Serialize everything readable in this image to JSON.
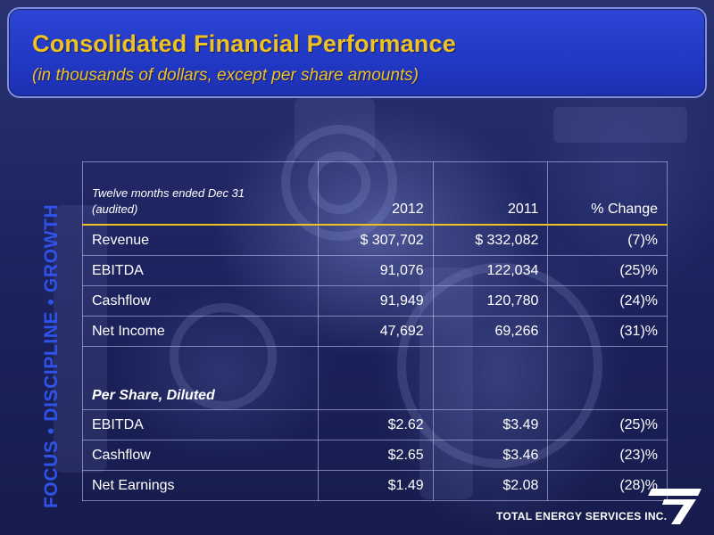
{
  "header": {
    "title": "Consolidated Financial Performance",
    "subtitle": "(in thousands of dollars, except per share amounts)"
  },
  "tagline": "FOCUS • DISCIPLINE • GROWTH",
  "table": {
    "description_line1": "Twelve months ended Dec 31",
    "description_line2": "(audited)",
    "columns": [
      "2012",
      "2011",
      "% Change"
    ],
    "rows": [
      {
        "label": "Revenue",
        "v2012": "$ 307,702",
        "v2011": "$ 332,082",
        "change": "(7)%"
      },
      {
        "label": "EBITDA",
        "v2012": "91,076",
        "v2011": "122,034",
        "change": "(25)%"
      },
      {
        "label": "Cashflow",
        "v2012": "91,949",
        "v2011": "120,780",
        "change": "(24)%"
      },
      {
        "label": "Net Income",
        "v2012": "47,692",
        "v2011": "69,266",
        "change": "(31)%"
      }
    ],
    "per_share_label": "Per Share, Diluted",
    "per_share_rows": [
      {
        "label": "EBITDA",
        "v2012": "$2.62",
        "v2011": "$3.49",
        "change": "(25)%"
      },
      {
        "label": "Cashflow",
        "v2012": "$2.65",
        "v2011": "$3.46",
        "change": "(23)%"
      },
      {
        "label": "Net Earnings",
        "v2012": "$1.49",
        "v2011": "$2.08",
        "change": "(28)%"
      }
    ]
  },
  "logo": {
    "text": "TOTAL ENERGY SERVICES INC.",
    "icon": "total-energy-logo-mark"
  },
  "colors": {
    "title": "#f0c21f",
    "header_bg": "#2138c4",
    "tagline": "#2f52e8",
    "rule": "#f0c21f"
  }
}
